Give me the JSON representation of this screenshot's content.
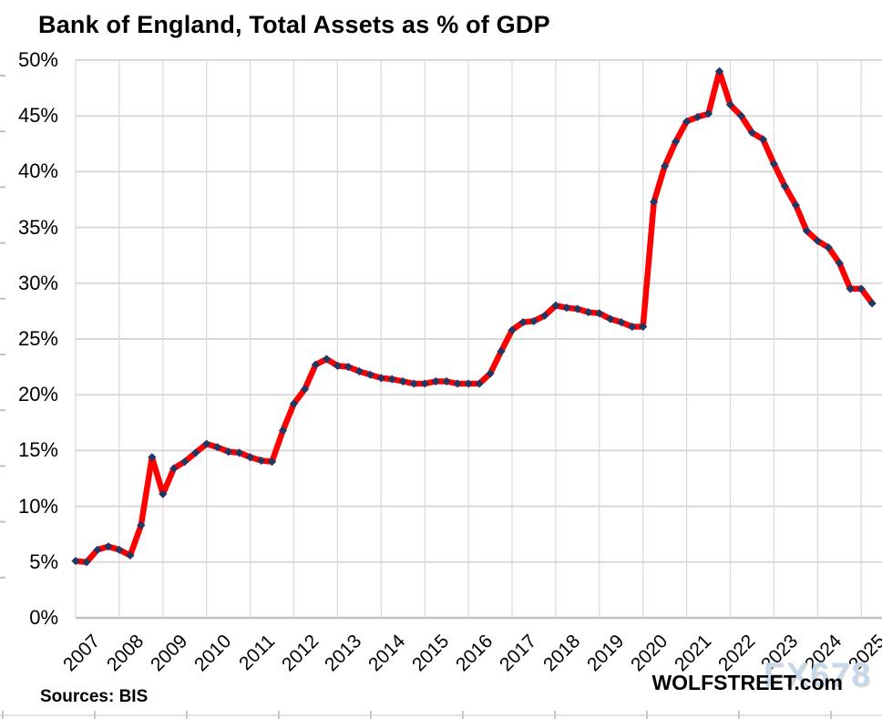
{
  "chart": {
    "title": "Bank of England, Total Assets as % of GDP",
    "source_note": "Sources: BIS",
    "branding": "WOLFSTREET.com",
    "watermark": "FX678",
    "colors": {
      "line": "#ff0000",
      "marker": "#1f3864",
      "grid": "#d9d9d9",
      "axis_line": "#c0c0c0",
      "axis_text": "#000000",
      "watermark_blue": "#c5d8ec"
    }
  },
  "chart_data": {
    "type": "line",
    "title": "Bank of England, Total Assets as % of GDP",
    "xlabel": "",
    "ylabel": "Total assets as % of GDP",
    "ylim": [
      0,
      50
    ],
    "y_tick_step": 5,
    "y_tick_labels": [
      "0%",
      "5%",
      "10%",
      "15%",
      "20%",
      "25%",
      "30%",
      "35%",
      "40%",
      "45%",
      "50%"
    ],
    "x_tick_labels": [
      "2007",
      "2008",
      "2009",
      "2010",
      "2011",
      "2012",
      "2013",
      "2014",
      "2015",
      "2016",
      "2017",
      "2018",
      "2019",
      "2020",
      "2021",
      "2022",
      "2023",
      "2024",
      "2025"
    ],
    "frequency": "quarterly",
    "start_period": "2007Q1",
    "end_period": "2025Q2",
    "grid": true,
    "legend_position": "none",
    "series": [
      {
        "name": "Bank of England total assets as % of GDP",
        "values": [
          5.1,
          5.0,
          6.1,
          6.4,
          6.1,
          5.6,
          8.3,
          14.4,
          11.1,
          13.4,
          14.0,
          14.8,
          15.6,
          15.3,
          14.9,
          14.8,
          14.4,
          14.1,
          14.0,
          16.8,
          19.2,
          20.5,
          22.7,
          23.2,
          22.6,
          22.5,
          22.1,
          21.8,
          21.5,
          21.4,
          21.2,
          21.0,
          21.0,
          21.2,
          21.2,
          21.0,
          21.0,
          21.0,
          21.9,
          23.9,
          25.8,
          26.5,
          26.6,
          27.1,
          28.0,
          27.8,
          27.7,
          27.4,
          27.3,
          26.8,
          26.5,
          26.1,
          26.1,
          37.3,
          40.5,
          42.7,
          44.5,
          44.9,
          45.2,
          49.0,
          46.0,
          45.0,
          43.5,
          42.9,
          40.7,
          38.7,
          37.0,
          34.7,
          33.8,
          33.2,
          31.8,
          29.5,
          29.5,
          28.2
        ]
      }
    ]
  }
}
